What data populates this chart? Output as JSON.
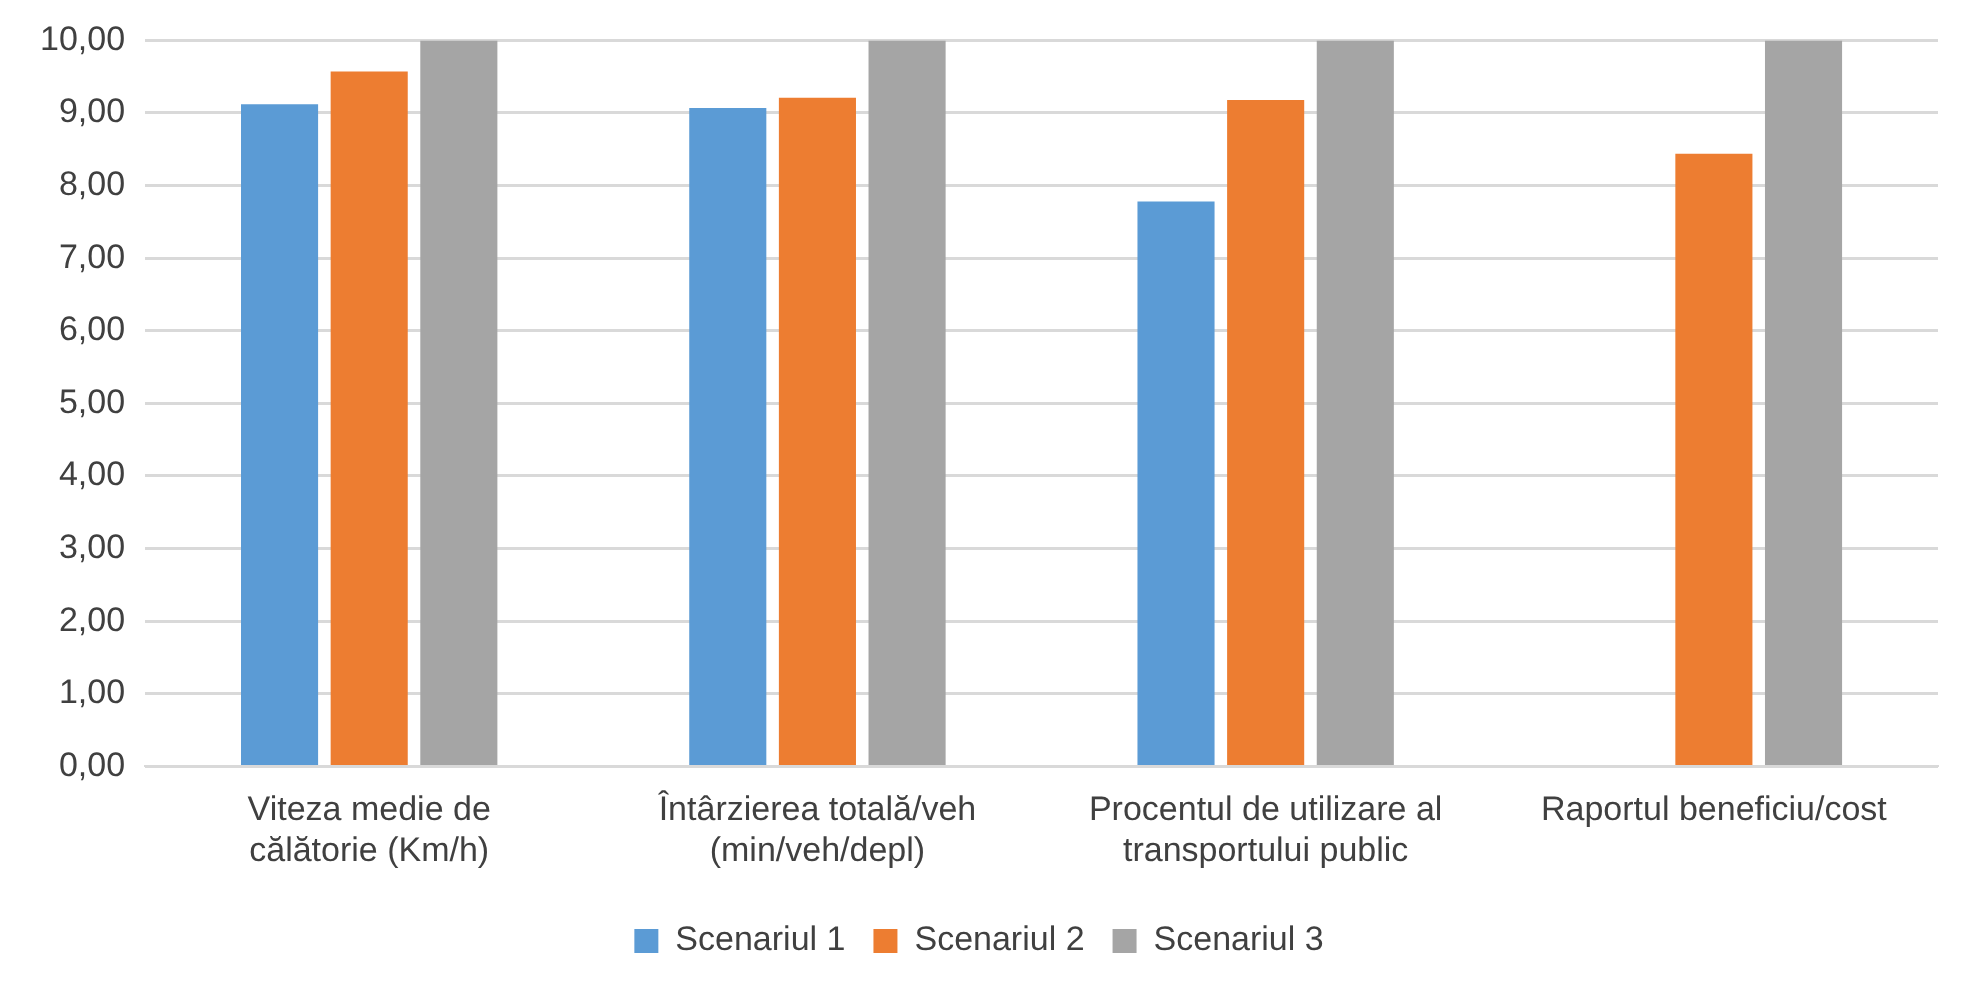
{
  "chart_data": {
    "type": "bar",
    "categories": [
      "Viteza medie de călătorie (Km/h)",
      "Întârzierea totală/veh (min/veh/depl)",
      "Procentul de utilizare al transportului public",
      "Raportul beneficiu/cost"
    ],
    "series": [
      {
        "name": "Scenariul 1",
        "color": "#5b9bd5",
        "values": [
          9.12,
          9.07,
          7.78,
          null
        ]
      },
      {
        "name": "Scenariul 2",
        "color": "#ed7d31",
        "values": [
          9.57,
          9.21,
          9.18,
          8.44
        ]
      },
      {
        "name": "Scenariul 3",
        "color": "#a5a5a5",
        "values": [
          10,
          10,
          10,
          10
        ]
      }
    ],
    "ylim": [
      0,
      10
    ],
    "yticks": [
      {
        "value": 0,
        "label": "0,00"
      },
      {
        "value": 1,
        "label": "1,00"
      },
      {
        "value": 2,
        "label": "2,00"
      },
      {
        "value": 3,
        "label": "3,00"
      },
      {
        "value": 4,
        "label": "4,00"
      },
      {
        "value": 5,
        "label": "5,00"
      },
      {
        "value": 6,
        "label": "6,00"
      },
      {
        "value": 7,
        "label": "7,00"
      },
      {
        "value": 8,
        "label": "8,00"
      },
      {
        "value": 9,
        "label": "9,00"
      },
      {
        "value": 10,
        "label": "10,00"
      }
    ],
    "grid": "y",
    "legend": "bottom"
  }
}
